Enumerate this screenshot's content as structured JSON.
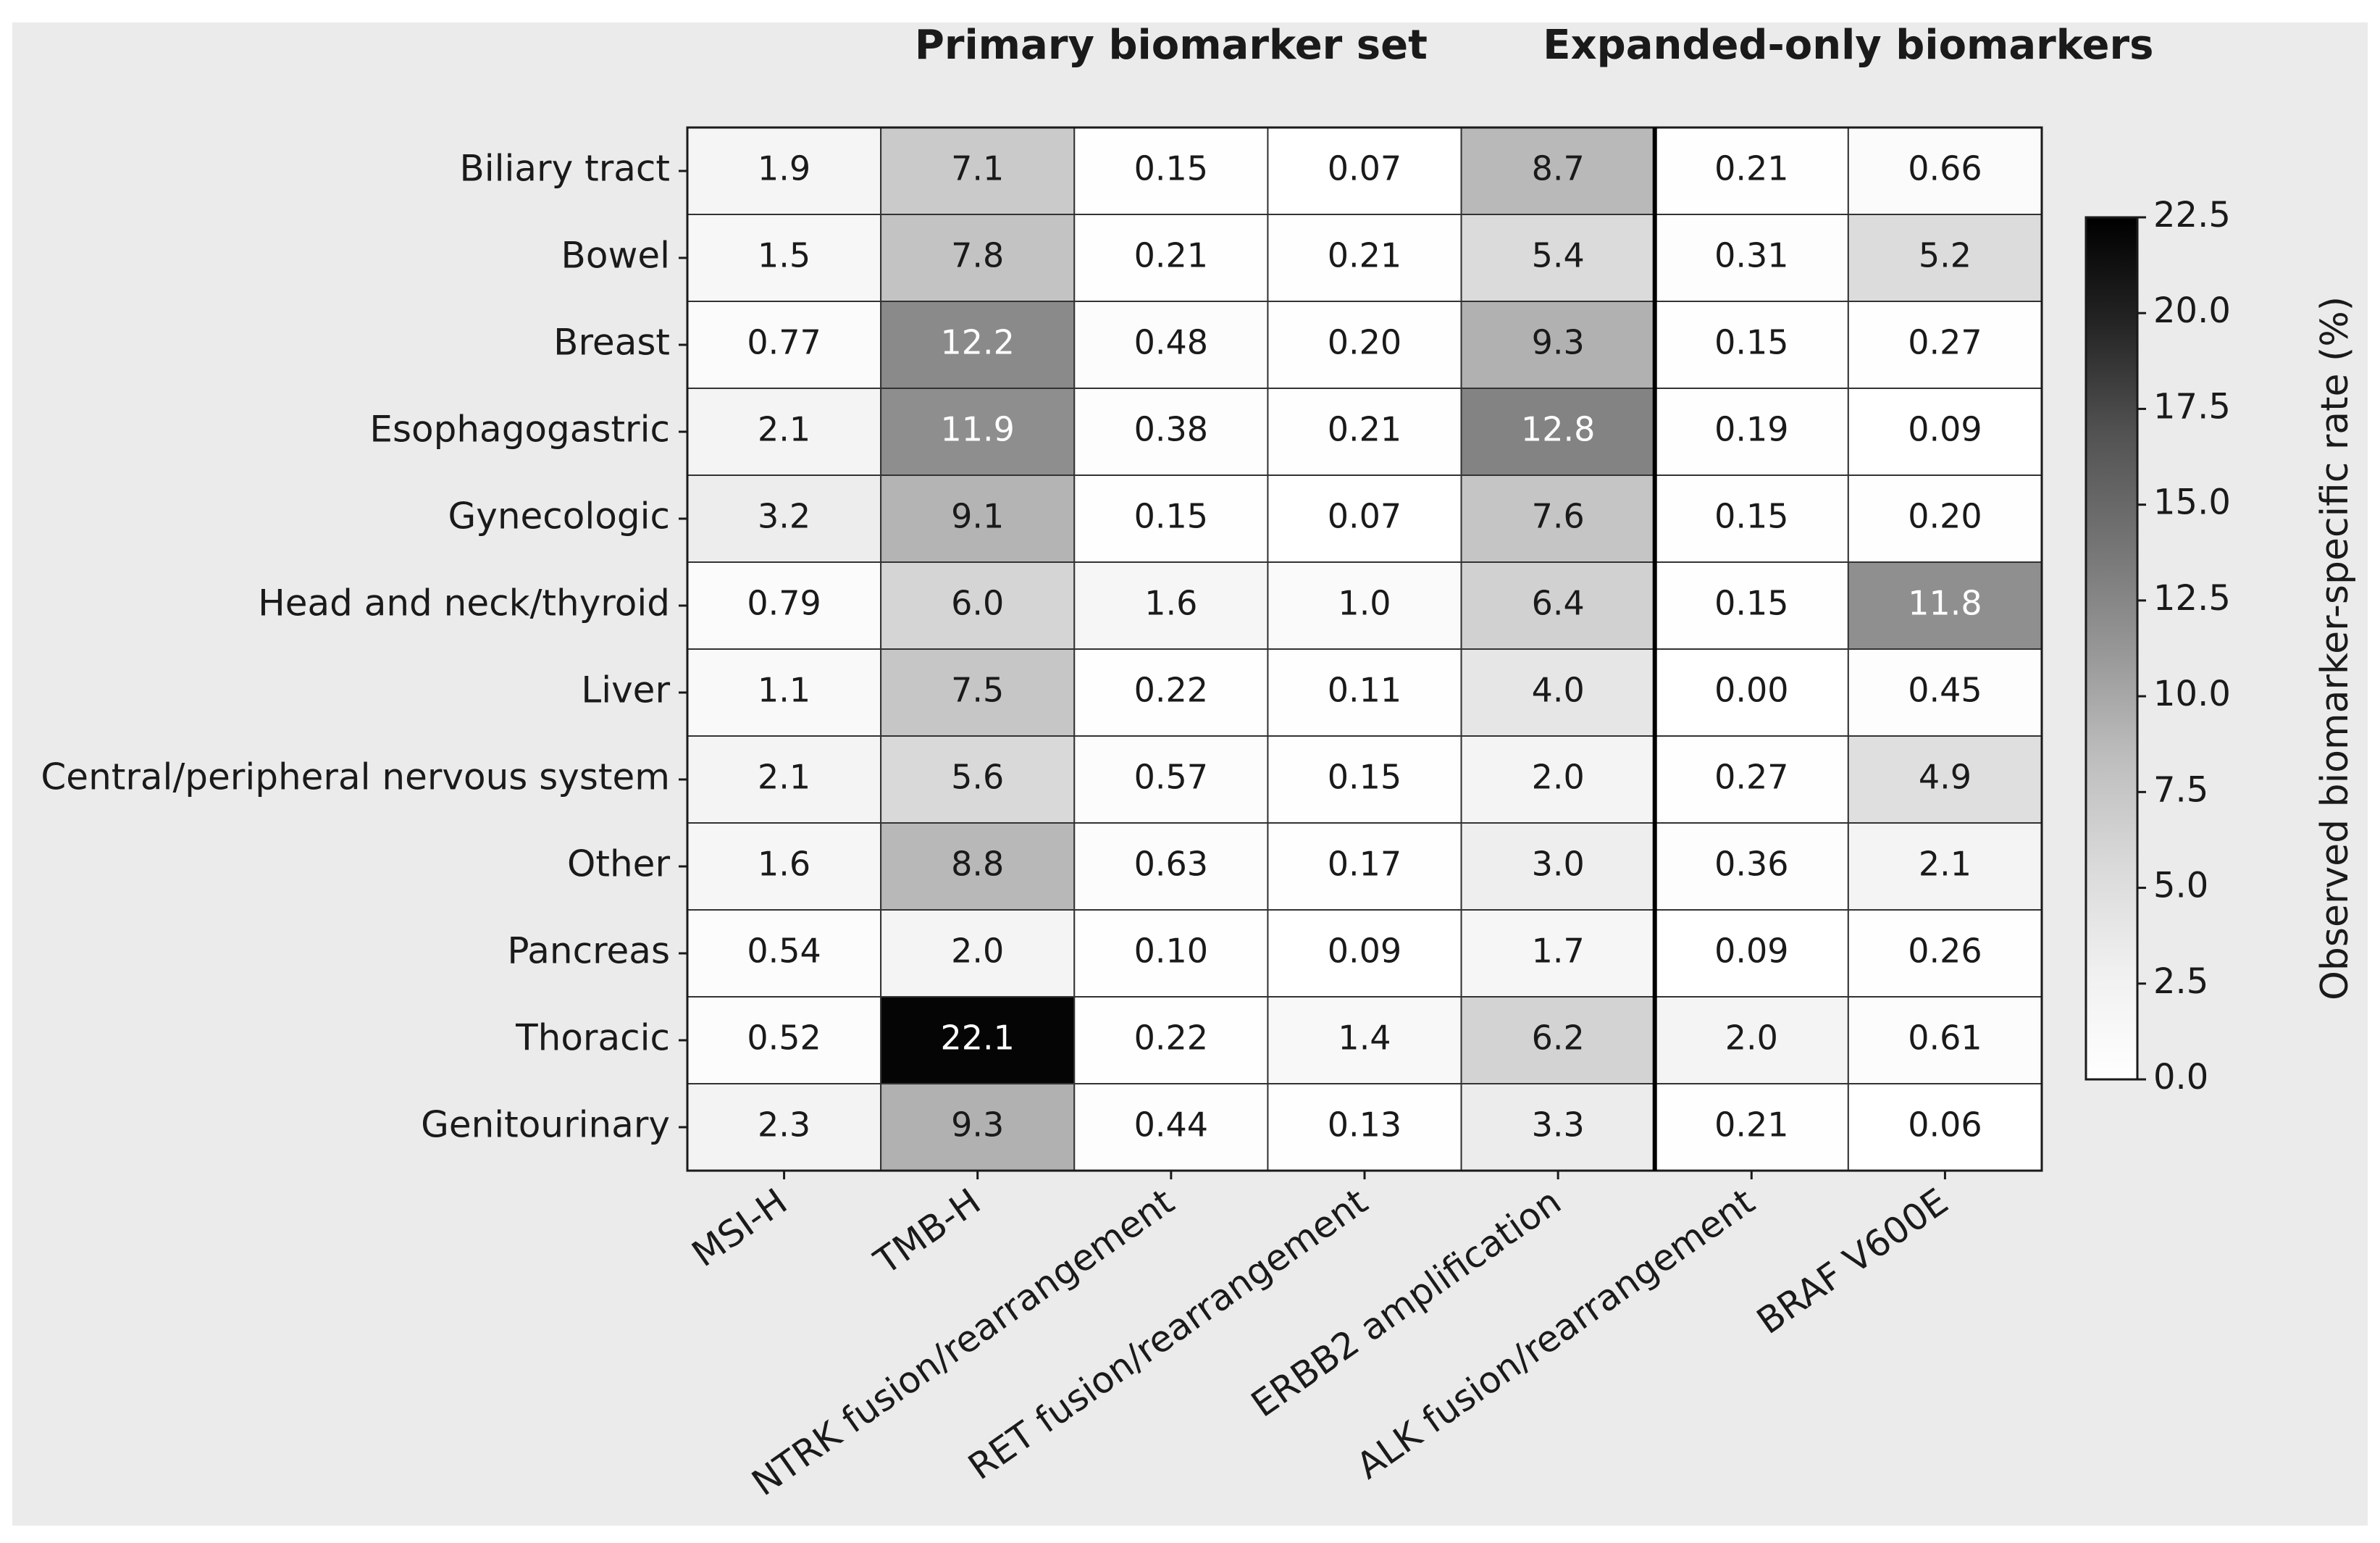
{
  "chart_data": {
    "type": "heatmap",
    "groups": [
      {
        "label": "Primary biomarker set",
        "count": 5
      },
      {
        "label": "Expanded-only biomarkers",
        "count": 2
      }
    ],
    "x_categories": [
      "MSI-H",
      "TMB-H",
      "NTRK fusion/rearrangement",
      "RET fusion/rearrangement",
      "ERBB2 amplification",
      "ALK fusion/rearrangement",
      "BRAF V600E"
    ],
    "y_categories": [
      "Biliary tract",
      "Bowel",
      "Breast",
      "Esophagogastric",
      "Gynecologic",
      "Head and neck/thyroid",
      "Liver",
      "Central/peripheral nervous system",
      "Other",
      "Pancreas",
      "Thoracic",
      "Genitourinary"
    ],
    "values": [
      [
        1.9,
        7.1,
        0.15,
        0.07,
        8.7,
        0.21,
        0.66
      ],
      [
        1.5,
        7.8,
        0.21,
        0.21,
        5.4,
        0.31,
        5.2
      ],
      [
        0.77,
        12.2,
        0.48,
        0.2,
        9.3,
        0.15,
        0.27
      ],
      [
        2.1,
        11.9,
        0.38,
        0.21,
        12.8,
        0.19,
        0.09
      ],
      [
        3.2,
        9.1,
        0.15,
        0.07,
        7.6,
        0.15,
        0.2
      ],
      [
        0.79,
        6.0,
        1.6,
        1.0,
        6.4,
        0.15,
        11.8
      ],
      [
        1.1,
        7.5,
        0.22,
        0.11,
        4.0,
        0.0,
        0.45
      ],
      [
        2.1,
        5.6,
        0.57,
        0.15,
        2.0,
        0.27,
        4.9
      ],
      [
        1.6,
        8.8,
        0.63,
        0.17,
        3.0,
        0.36,
        2.1
      ],
      [
        0.54,
        2.0,
        0.1,
        0.09,
        1.7,
        0.09,
        0.26
      ],
      [
        0.52,
        22.1,
        0.22,
        1.4,
        6.2,
        2.0,
        0.61
      ],
      [
        2.3,
        9.3,
        0.44,
        0.13,
        3.3,
        0.21,
        0.06
      ]
    ],
    "value_labels": [
      [
        "1.9",
        "7.1",
        "0.15",
        "0.07",
        "8.7",
        "0.21",
        "0.66"
      ],
      [
        "1.5",
        "7.8",
        "0.21",
        "0.21",
        "5.4",
        "0.31",
        "5.2"
      ],
      [
        "0.77",
        "12.2",
        "0.48",
        "0.20",
        "9.3",
        "0.15",
        "0.27"
      ],
      [
        "2.1",
        "11.9",
        "0.38",
        "0.21",
        "12.8",
        "0.19",
        "0.09"
      ],
      [
        "3.2",
        "9.1",
        "0.15",
        "0.07",
        "7.6",
        "0.15",
        "0.20"
      ],
      [
        "0.79",
        "6.0",
        "1.6",
        "1.0",
        "6.4",
        "0.15",
        "11.8"
      ],
      [
        "1.1",
        "7.5",
        "0.22",
        "0.11",
        "4.0",
        "0.00",
        "0.45"
      ],
      [
        "2.1",
        "5.6",
        "0.57",
        "0.15",
        "2.0",
        "0.27",
        "4.9"
      ],
      [
        "1.6",
        "8.8",
        "0.63",
        "0.17",
        "3.0",
        "0.36",
        "2.1"
      ],
      [
        "0.54",
        "2.0",
        "0.10",
        "0.09",
        "1.7",
        "0.09",
        "0.26"
      ],
      [
        "0.52",
        "22.1",
        "0.22",
        "1.4",
        "6.2",
        "2.0",
        "0.61"
      ],
      [
        "2.3",
        "9.3",
        "0.44",
        "0.13",
        "3.3",
        "0.21",
        "0.06"
      ]
    ],
    "colormap": "Greys",
    "colorbar_label": "Observed biomarker-specific rate (%)",
    "clim": [
      0,
      22.5
    ],
    "cticks": [
      {
        "value": 0,
        "label": "0.0"
      },
      2.5,
      {
        "value": 5,
        "label": "5.0"
      },
      7.5,
      {
        "value": 10,
        "label": "10.0"
      },
      12.5,
      {
        "value": 15,
        "label": "15.0"
      },
      17.5,
      {
        "value": 20,
        "label": "20.0"
      },
      22.5
    ]
  }
}
